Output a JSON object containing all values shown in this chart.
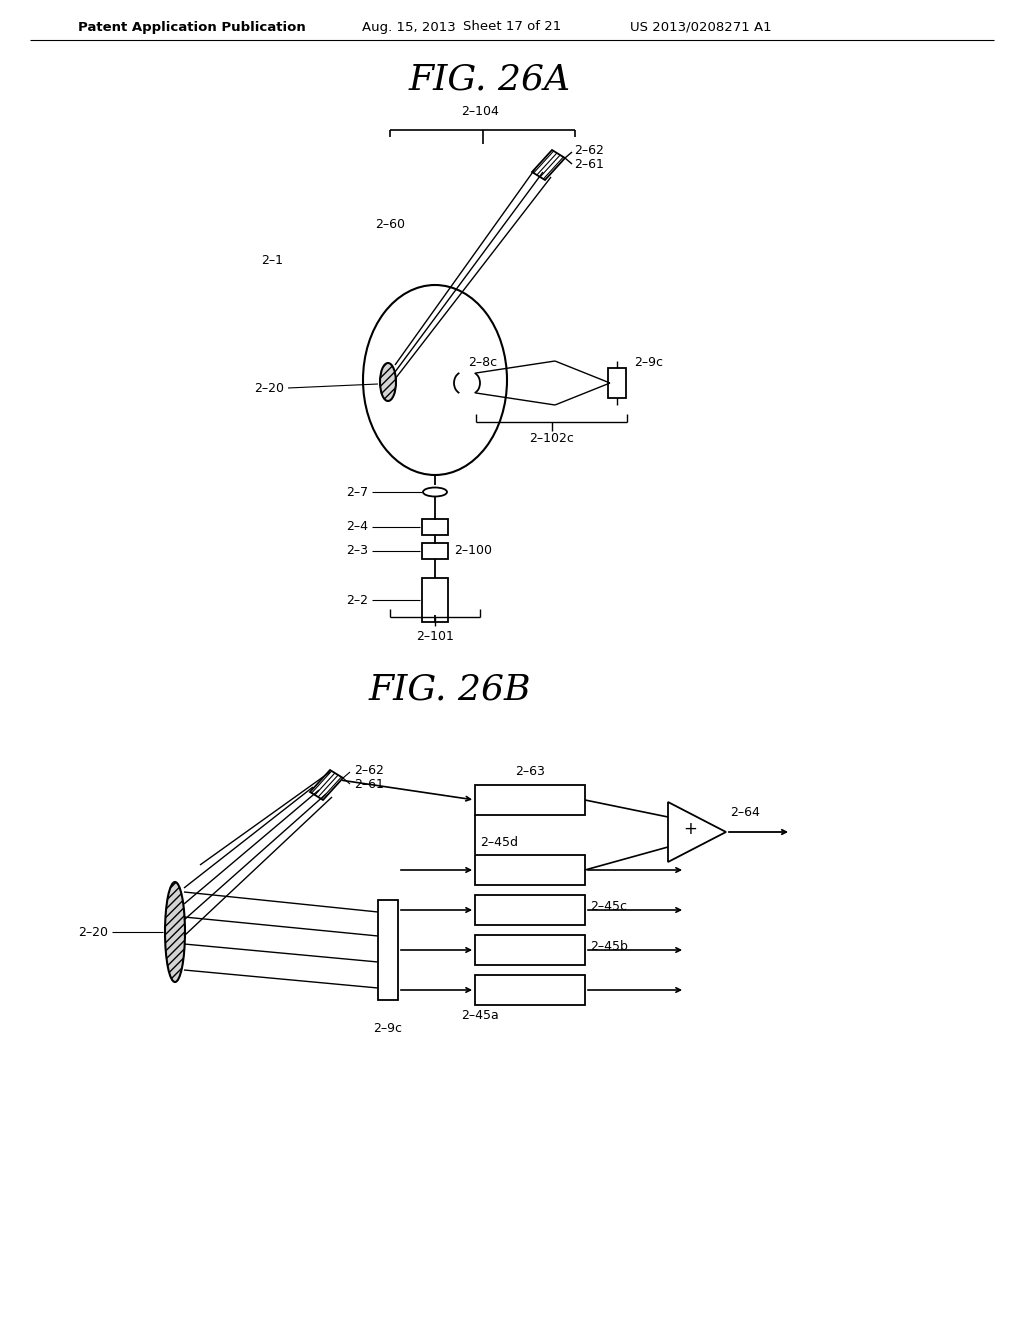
{
  "bg_color": "#ffffff",
  "text_color": "#000000",
  "line_color": "#000000",
  "header_left": "Patent Application Publication",
  "header_date": "Aug. 15, 2013",
  "header_sheet": "Sheet 17 of 21",
  "header_right": "US 2013/0208271 A1",
  "fig26a_title": "FIG. 26A",
  "fig26b_title": "FIG. 26B",
  "labels_26a": {
    "brace104": "2–104",
    "label62": "2–62",
    "label61": "2–61",
    "label60": "2–60",
    "label1": "2–1",
    "label20": "2–20",
    "label8c": "2–8c",
    "label9c": "2–9c",
    "label102c": "2–102c",
    "label7": "2–7",
    "label4": "2–4",
    "label3": "2–3",
    "label100": "2–100",
    "label2": "2–2",
    "brace101": "2–101"
  },
  "labels_26b": {
    "label63": "2–63",
    "label64": "2–64",
    "label62": "2–62",
    "label61": "2–61",
    "label20": "2–20",
    "label9c": "2–9c",
    "label45d": "2–45d",
    "label45c": "2–45c",
    "label45b": "2–45b",
    "label45a": "2–45a"
  }
}
